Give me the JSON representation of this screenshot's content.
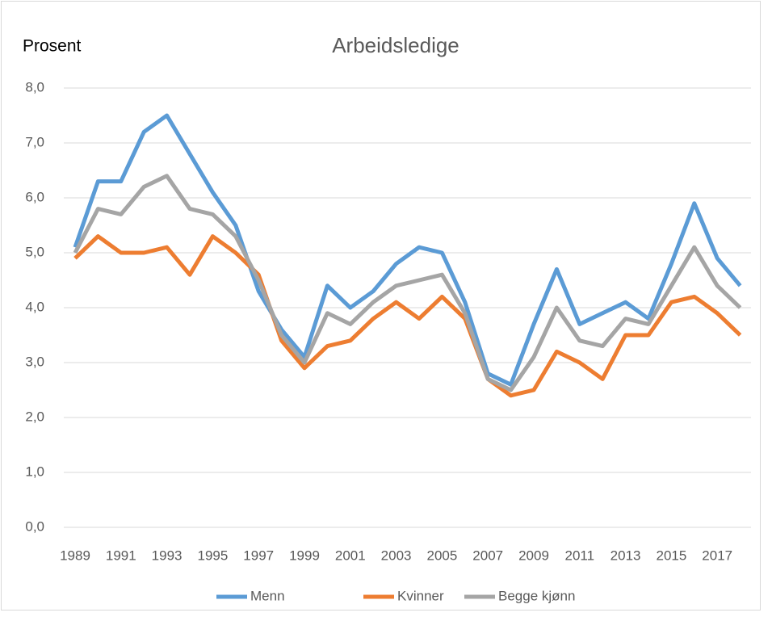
{
  "chart_data": {
    "type": "line",
    "title": "Arbeidsledige",
    "y_label": "Prosent",
    "categories": [
      "1989",
      null,
      "1991",
      null,
      "1993",
      null,
      "1995",
      null,
      "1997",
      null,
      "1999",
      null,
      "2001",
      null,
      "2003",
      null,
      "2005",
      null,
      "2007",
      null,
      "2009",
      null,
      "2011",
      null,
      "2013",
      null,
      "2015",
      null,
      "2017",
      null
    ],
    "series": [
      {
        "name": "Menn",
        "color": "#5b9bd5",
        "values": [
          5.1,
          6.3,
          6.3,
          7.2,
          7.5,
          6.8,
          6.1,
          5.5,
          4.3,
          3.6,
          3.1,
          4.4,
          4.0,
          4.3,
          4.8,
          5.1,
          5.0,
          4.1,
          2.8,
          2.6,
          3.7,
          4.7,
          3.7,
          3.9,
          4.1,
          3.8,
          4.8,
          5.9,
          4.9,
          4.4
        ]
      },
      {
        "name": "Kvinner",
        "color": "#ed7d31",
        "values": [
          4.9,
          5.3,
          5.0,
          5.0,
          5.1,
          4.6,
          5.3,
          5.0,
          4.6,
          3.4,
          2.9,
          3.3,
          3.4,
          3.8,
          4.1,
          3.8,
          4.2,
          3.8,
          2.7,
          2.4,
          2.5,
          3.2,
          3.0,
          2.7,
          3.5,
          3.5,
          4.1,
          4.2,
          3.9,
          3.5
        ]
      },
      {
        "name": "Begge kjønn",
        "color": "#a5a5a5",
        "values": [
          5.0,
          5.8,
          5.7,
          6.2,
          6.4,
          5.8,
          5.7,
          5.3,
          4.5,
          3.5,
          3.0,
          3.9,
          3.7,
          4.1,
          4.4,
          4.5,
          4.6,
          3.9,
          2.7,
          2.5,
          3.1,
          4.0,
          3.4,
          3.3,
          3.8,
          3.7,
          4.4,
          5.1,
          4.4,
          4.0
        ]
      }
    ],
    "ylim": [
      0,
      8
    ],
    "yticks": [
      {
        "value": 0,
        "label": "0,0"
      },
      {
        "value": 1,
        "label": "1,0"
      },
      {
        "value": 2,
        "label": "2,0"
      },
      {
        "value": 3,
        "label": "3,0"
      },
      {
        "value": 4,
        "label": "4,0"
      },
      {
        "value": 5,
        "label": "5,0"
      },
      {
        "value": 6,
        "label": "6,0"
      },
      {
        "value": 7,
        "label": "7,0"
      },
      {
        "value": 8,
        "label": "8,0"
      }
    ],
    "grid": true,
    "legend": "bottom"
  }
}
